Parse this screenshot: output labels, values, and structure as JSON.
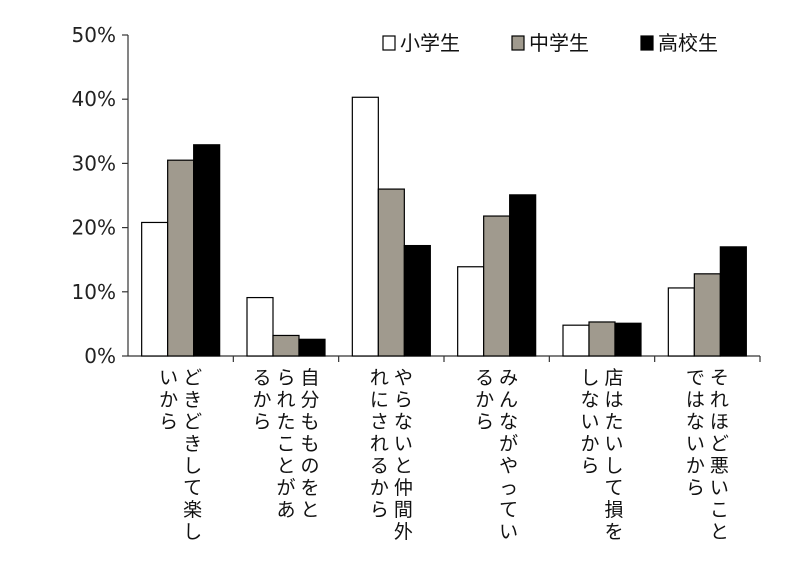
{
  "chart_data": {
    "type": "bar",
    "title": "",
    "xlabel": "",
    "ylabel": "",
    "ylim": [
      0,
      50
    ],
    "yticks": [
      0,
      10,
      20,
      30,
      40,
      50
    ],
    "ytick_labels": [
      "0%",
      "10%",
      "20%",
      "30%",
      "40%",
      "50%"
    ],
    "grid": false,
    "legend_position": "top-right",
    "categories": [
      "どきどきして楽しいから",
      "自分もものをとられたことがあるから",
      "やらないと仲間外れにされるから",
      "みんながやっているから",
      "店はたいして損をしないから",
      "それほど悪いことではないから"
    ],
    "category_lines": [
      [
        "どきどきして楽し",
        "いから"
      ],
      [
        "自分もものをと",
        "られたことがあ",
        "るから"
      ],
      [
        "やらないと仲間外",
        "れにされるから"
      ],
      [
        "みんながやってい",
        "るから"
      ],
      [
        "店はたいして損を",
        "しないから"
      ],
      [
        "それほど悪いこと",
        "ではないから"
      ]
    ],
    "series": [
      {
        "name": "小学生",
        "color": "#ffffff",
        "values": [
          20.8,
          9.1,
          40.3,
          13.9,
          4.8,
          10.6
        ]
      },
      {
        "name": "中学生",
        "color": "#a09a8e",
        "values": [
          30.5,
          3.2,
          26.0,
          21.8,
          5.3,
          12.8
        ]
      },
      {
        "name": "高校生",
        "color": "#000000",
        "values": [
          32.9,
          2.6,
          17.2,
          25.1,
          5.1,
          17.0
        ]
      }
    ]
  }
}
